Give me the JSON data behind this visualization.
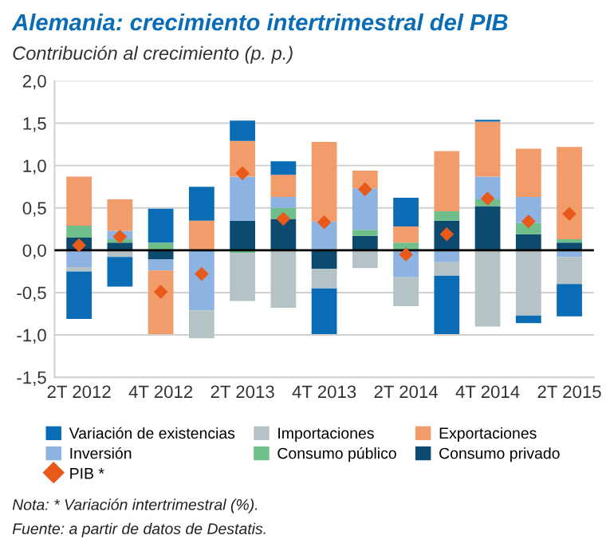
{
  "chart_data": {
    "type": "bar",
    "stacked": true,
    "title": "Alemania: crecimiento intertrimestral del PIB",
    "subtitle": "Contribución al crecimiento (p. p.)",
    "categories": [
      "2T 2012",
      null,
      "4T 2012",
      null,
      "2T 2013",
      null,
      "4T 2013",
      null,
      "2T 2014",
      null,
      "4T 2014",
      null,
      "2T 2015"
    ],
    "series": [
      {
        "name": "Consumo privado",
        "color": "#0c4a70",
        "values": [
          0.15,
          0.09,
          -0.11,
          null,
          0.35,
          0.37,
          -0.22,
          0.17,
          null,
          0.35,
          0.52,
          0.19,
          0.09
        ]
      },
      {
        "name": "Consumo público",
        "color": "#6fbf8a",
        "values": [
          0.14,
          0.04,
          0.09,
          null,
          -0.03,
          0.13,
          null,
          0.07,
          0.09,
          0.11,
          0.08,
          0.13,
          0.04
        ]
      },
      {
        "name": "Inversión",
        "color": "#8db3e2",
        "values": [
          -0.2,
          0.1,
          -0.13,
          -0.71,
          0.52,
          0.13,
          0.34,
          0.49,
          -0.32,
          -0.14,
          0.27,
          0.31,
          -0.08
        ]
      },
      {
        "name": "Exportaciones",
        "color": "#f29b6b",
        "values": [
          0.58,
          0.37,
          -0.75,
          0.35,
          0.42,
          0.26,
          0.94,
          0.21,
          0.19,
          0.71,
          0.65,
          0.57,
          1.09
        ]
      },
      {
        "name": "Importaciones",
        "color": "#b5c3c6",
        "values": [
          -0.05,
          -0.08,
          0,
          -0.33,
          -0.57,
          -0.68,
          -0.23,
          -0.21,
          -0.34,
          -0.16,
          -0.9,
          -0.77,
          -0.32
        ]
      },
      {
        "name": "Variación de existencias",
        "color": "#0a6cb4",
        "values": [
          -0.56,
          -0.35,
          0.4,
          0.4,
          0.24,
          0.16,
          -0.54,
          0,
          0.34,
          -0.69,
          0.02,
          -0.09,
          -0.38
        ]
      },
      {
        "name": "PIB *",
        "type": "scatter",
        "marker": "diamond",
        "color": "#e8591a",
        "values": [
          0.06,
          0.16,
          -0.49,
          -0.28,
          0.91,
          0.37,
          0.33,
          0.72,
          -0.05,
          0.19,
          0.61,
          0.34,
          0.43
        ]
      }
    ],
    "ylim": [
      -1.5,
      2.0
    ],
    "yticks": [
      {
        "value": -1.5,
        "label": "-1,5"
      },
      {
        "value": -1.0,
        "label": "-1,0"
      },
      {
        "value": -0.5,
        "label": "-0,5"
      },
      {
        "value": 0,
        "label": "0,0"
      },
      {
        "value": 0.5,
        "label": "0,5"
      },
      {
        "value": 1.0,
        "label": "1,0"
      },
      {
        "value": 1.5,
        "label": "1,5"
      },
      {
        "value": 2.0,
        "label": "2,0"
      }
    ],
    "ref_lines": [
      {
        "axis": "y",
        "value": 0,
        "color": "#000000"
      }
    ],
    "grid": "y",
    "legend": "bottom",
    "annotations": [
      "Nota: * Variación intertrimestral (%).",
      "Fuente: a partir de datos de Destatis."
    ]
  }
}
